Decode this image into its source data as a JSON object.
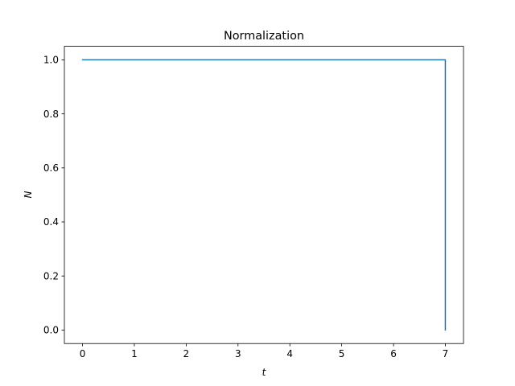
{
  "chart_data": {
    "type": "line",
    "title": "Normalization",
    "xlabel": "t",
    "ylabel": "N",
    "xlim": [
      -0.35,
      7.35
    ],
    "ylim": [
      -0.05,
      1.05
    ],
    "xticks": [
      0,
      1,
      2,
      3,
      4,
      5,
      6,
      7
    ],
    "yticks": [
      0.0,
      0.2,
      0.4,
      0.6,
      0.8,
      1.0
    ],
    "xtick_labels": [
      "0",
      "1",
      "2",
      "3",
      "4",
      "5",
      "6",
      "7"
    ],
    "ytick_labels": [
      "0.0",
      "0.2",
      "0.4",
      "0.6",
      "0.8",
      "1.0"
    ],
    "grid": false,
    "series": [
      {
        "color": "#1f77b4",
        "x": [
          0,
          1,
          2,
          3,
          4,
          5,
          6,
          7,
          7
        ],
        "y": [
          1.0,
          1.0,
          1.0,
          1.0,
          1.0,
          1.0,
          1.0,
          1.0,
          0.0
        ]
      }
    ]
  }
}
